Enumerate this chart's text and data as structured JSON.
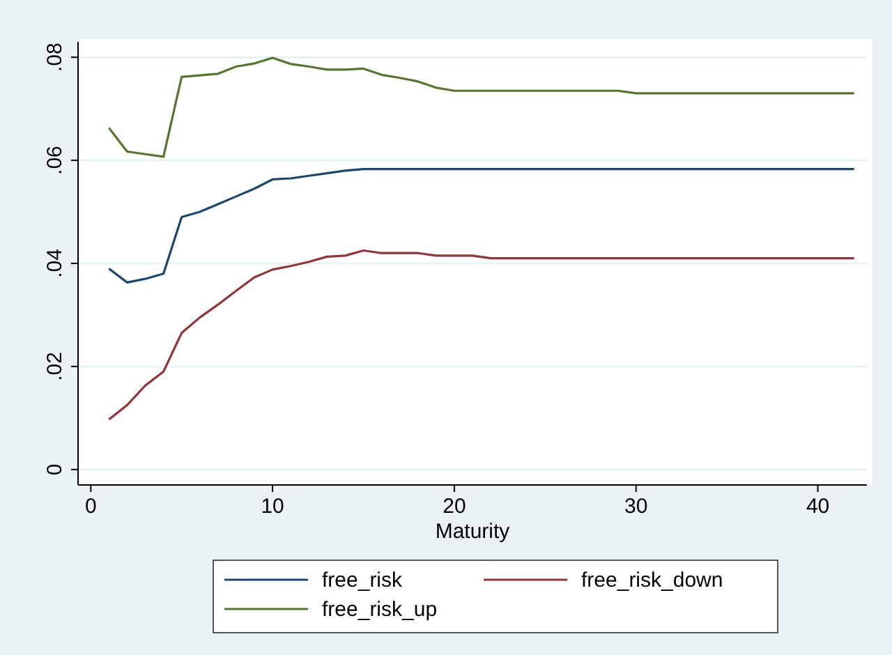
{
  "chart_data": {
    "type": "line",
    "xlabel": "Maturity",
    "x": [
      1,
      2,
      3,
      4,
      5,
      6,
      7,
      8,
      9,
      10,
      11,
      12,
      13,
      14,
      15,
      16,
      17,
      18,
      19,
      20,
      21,
      22,
      23,
      24,
      25,
      26,
      27,
      28,
      29,
      30,
      31,
      32,
      33,
      34,
      35,
      36,
      37,
      38,
      39,
      40,
      41,
      42
    ],
    "series": [
      {
        "name": "free_risk",
        "color": "#1a476f",
        "values": [
          0.039,
          0.0363,
          0.037,
          0.038,
          0.049,
          0.05,
          0.0515,
          0.053,
          0.0545,
          0.0563,
          0.0565,
          0.057,
          0.0575,
          0.058,
          0.0583,
          0.0583,
          0.0583,
          0.0583,
          0.0583,
          0.0583,
          0.0583,
          0.0583,
          0.0583,
          0.0583,
          0.0583,
          0.0583,
          0.0583,
          0.0583,
          0.0583,
          0.0583,
          0.0583,
          0.0583,
          0.0583,
          0.0583,
          0.0583,
          0.0583,
          0.0583,
          0.0583,
          0.0583,
          0.0583,
          0.0583,
          0.0583
        ]
      },
      {
        "name": "free_risk_down",
        "color": "#90353b",
        "values": [
          0.0097,
          0.0125,
          0.0163,
          0.019,
          0.0265,
          0.0295,
          0.032,
          0.0347,
          0.0373,
          0.0388,
          0.0395,
          0.0403,
          0.0413,
          0.0415,
          0.0425,
          0.042,
          0.042,
          0.042,
          0.0415,
          0.0415,
          0.0415,
          0.041,
          0.041,
          0.041,
          0.041,
          0.041,
          0.041,
          0.041,
          0.041,
          0.041,
          0.041,
          0.041,
          0.041,
          0.041,
          0.041,
          0.041,
          0.041,
          0.041,
          0.041,
          0.041,
          0.041,
          0.041
        ]
      },
      {
        "name": "free_risk_up",
        "color": "#55752f",
        "values": [
          0.0663,
          0.0617,
          0.0612,
          0.0607,
          0.0762,
          0.0765,
          0.0768,
          0.0782,
          0.0788,
          0.0799,
          0.0787,
          0.0782,
          0.0776,
          0.0776,
          0.0778,
          0.0766,
          0.076,
          0.0753,
          0.0741,
          0.0735,
          0.0735,
          0.0735,
          0.0735,
          0.0735,
          0.0735,
          0.0735,
          0.0735,
          0.0735,
          0.0735,
          0.073,
          0.073,
          0.073,
          0.073,
          0.073,
          0.073,
          0.073,
          0.073,
          0.073,
          0.073,
          0.073,
          0.073,
          0.073
        ]
      }
    ],
    "xlim": [
      -0.7,
      42.7
    ],
    "xticks": [
      0,
      10,
      20,
      30,
      40
    ],
    "ylim": [
      -0.003,
      0.083
    ],
    "yticks": [
      0,
      {
        "value": 0.02,
        "label": ".02"
      },
      {
        "value": 0.04,
        "label": ".04"
      },
      {
        "value": 0.06,
        "label": ".06"
      },
      {
        "value": 0.08,
        "label": ".08"
      }
    ],
    "grid": "y",
    "legend": "bottom",
    "line_style": "solid"
  }
}
